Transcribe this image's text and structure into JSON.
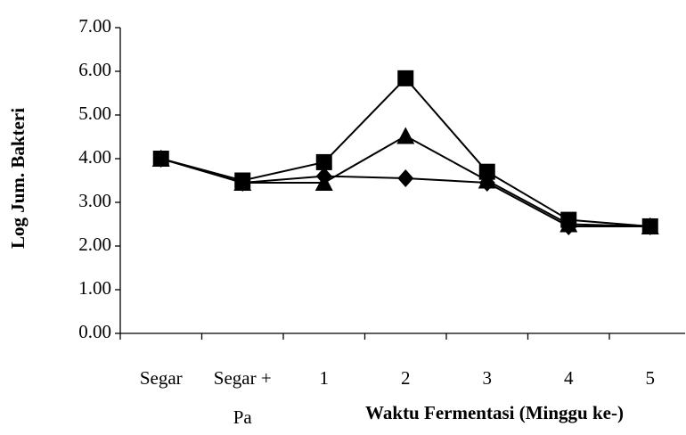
{
  "chart_data": {
    "type": "line",
    "x_label": "Waktu Fermentasi (Minggu ke-)",
    "y_label": "Log Jum. Bakteri",
    "categories": [
      "Segar",
      "Segar + Pa",
      "1",
      "2",
      "3",
      "4",
      "5"
    ],
    "series": [
      {
        "marker": "diamond",
        "color": "#000000",
        "values": [
          4.0,
          3.45,
          3.6,
          3.55,
          3.45,
          2.45,
          2.45
        ]
      },
      {
        "marker": "triangle",
        "color": "#000000",
        "values": [
          4.0,
          3.45,
          3.45,
          4.52,
          3.5,
          2.5,
          2.45
        ]
      },
      {
        "marker": "square",
        "color": "#000000",
        "values": [
          4.0,
          3.5,
          3.92,
          5.84,
          3.7,
          2.6,
          2.45
        ]
      }
    ],
    "ylim": [
      0,
      7
    ],
    "yticks": [
      {
        "value": 0,
        "label": "0.00"
      },
      {
        "value": 1,
        "label": "1.00"
      },
      {
        "value": 2,
        "label": "2.00"
      },
      {
        "value": 3,
        "label": "3.00"
      },
      {
        "value": 4,
        "label": "4.00"
      },
      {
        "value": 5,
        "label": "5.00"
      },
      {
        "value": 6,
        "label": "6.00"
      },
      {
        "value": 7,
        "label": "7.00"
      }
    ]
  }
}
